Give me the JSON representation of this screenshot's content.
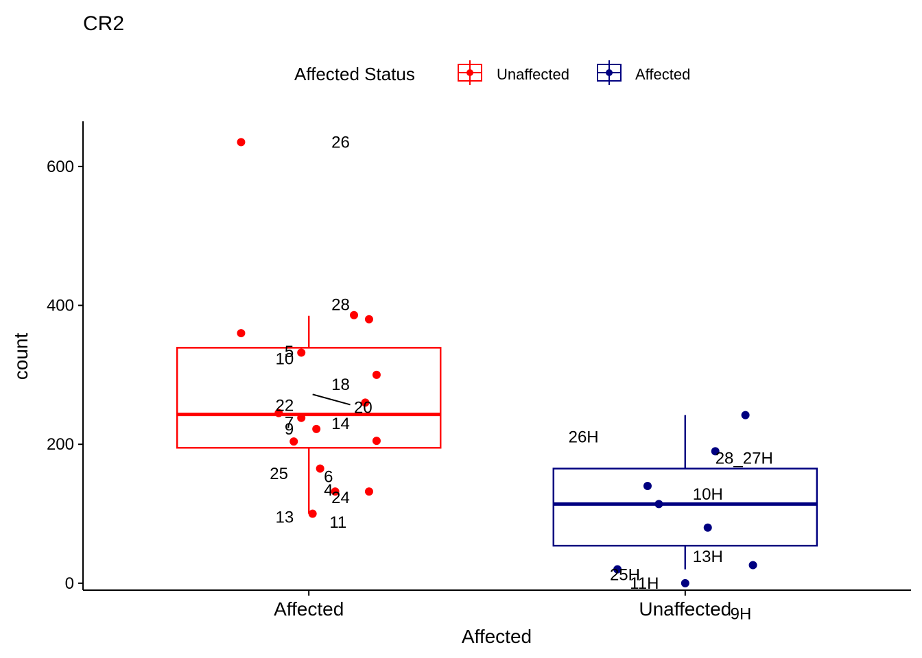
{
  "chart_data": {
    "type": "boxplot",
    "title": "CR2",
    "xlabel": "Affected",
    "ylabel": "count",
    "ylim": [
      -10,
      665
    ],
    "yticks": [
      0,
      200,
      400,
      600
    ],
    "categories": [
      "Affected",
      "Unaffected"
    ],
    "legend": {
      "title": "Affected Status",
      "position": "top",
      "entries": [
        {
          "label": "Unaffected",
          "color": "#ff0000"
        },
        {
          "label": "Affected",
          "color": "#000080"
        }
      ]
    },
    "boxes": [
      {
        "category": "Affected",
        "color": "#ff0000",
        "whisker_low": 100,
        "q1": 195,
        "median": 243,
        "q3": 339,
        "whisker_high": 385
      },
      {
        "category": "Unaffected",
        "color": "#000080",
        "whisker_low": 20,
        "q1": 54,
        "median": 114,
        "q3": 165,
        "whisker_high": 242
      }
    ],
    "points": [
      {
        "category": "Affected",
        "jitter": -0.18,
        "y": 635,
        "label": "26",
        "label_dx": 0.06,
        "label_dy": 8
      },
      {
        "category": "Affected",
        "jitter": 0.12,
        "y": 386,
        "label": "28",
        "label_dx": 0.06,
        "label_dy": -7
      },
      {
        "category": "Affected",
        "jitter": 0.16,
        "y": 380,
        "label": null
      },
      {
        "category": "Affected",
        "jitter": -0.18,
        "y": 360,
        "label": "5",
        "label_dx": -0.04,
        "label_dy": 35
      },
      {
        "category": "Affected",
        "jitter": -0.02,
        "y": 332,
        "label": "10",
        "label_dx": -0.04,
        "label_dy": 17
      },
      {
        "category": "Affected",
        "jitter": 0.18,
        "y": 300,
        "label": "18",
        "label_dx": 0.06,
        "label_dy": 22
      },
      {
        "category": "Affected",
        "jitter": 0.15,
        "y": 260,
        "label": "20",
        "label_dx": 0.12,
        "label_dy": 15
      },
      {
        "category": "Affected",
        "jitter": -0.08,
        "y": 245,
        "label": "7",
        "label_dx": -0.04,
        "label_dy": 22
      },
      {
        "category": "Affected",
        "jitter": -0.02,
        "y": 238,
        "label": "22",
        "label_dx": -0.04,
        "label_dy": -10
      },
      {
        "category": "Affected",
        "jitter": 0.02,
        "y": 222,
        "label": "14",
        "label_dx": 0.06,
        "label_dy": 0
      },
      {
        "category": "Affected",
        "jitter": -0.04,
        "y": 204,
        "label": "9",
        "label_dx": -0.04,
        "label_dy": -10
      },
      {
        "category": "Affected",
        "jitter": 0.18,
        "y": 205,
        "label": "4",
        "label_dx": 0.04,
        "label_dy": 80
      },
      {
        "category": "Affected",
        "jitter": 0.03,
        "y": 165,
        "label": "6",
        "label_dx": 0.04,
        "label_dy": 20
      },
      {
        "category": "Affected",
        "jitter": 0.07,
        "y": 132,
        "label": "24",
        "label_dx": 0.06,
        "label_dy": 17
      },
      {
        "category": "Affected",
        "jitter": 0.16,
        "y": 132,
        "label": null
      },
      {
        "category": "Affected",
        "jitter": 0.01,
        "y": 100,
        "label": "13",
        "label_dx": -0.04,
        "label_dy": 13
      },
      {
        "category": "Unaffected",
        "jitter": 0.16,
        "y": 242,
        "label": "26H",
        "label_dx": -0.23,
        "label_dy": 40
      },
      {
        "category": "Unaffected",
        "jitter": 0.08,
        "y": 190,
        "label": "28_27H",
        "label_dx": 0.08,
        "label_dy": 18
      },
      {
        "category": "Unaffected",
        "jitter": -0.1,
        "y": 140,
        "label": "10H",
        "label_dx": 0.02,
        "label_dy": 20
      },
      {
        "category": "Unaffected",
        "jitter": -0.07,
        "y": 114,
        "label": null
      },
      {
        "category": "Unaffected",
        "jitter": 0.06,
        "y": 80,
        "label": "13H",
        "label_dx": 0.02,
        "label_dy": 50
      },
      {
        "category": "Unaffected",
        "jitter": -0.18,
        "y": 20,
        "label": "9H",
        "label_dx": 0.12,
        "label_dy": 73
      },
      {
        "category": "Unaffected",
        "jitter": 0.18,
        "y": 26,
        "label": "25H",
        "label_dx": -0.12,
        "label_dy": 22
      },
      {
        "category": "Unaffected",
        "jitter": 0.0,
        "y": 0,
        "label": "11H",
        "label_dx": -0.07,
        "label_dy": 8
      }
    ],
    "extra_labels": [
      {
        "category": "Affected",
        "offset": 0.055,
        "y": 80,
        "text": "11"
      },
      {
        "category": "Affected",
        "offset": -0.055,
        "y": 150,
        "text": "25"
      }
    ],
    "grid": false
  }
}
